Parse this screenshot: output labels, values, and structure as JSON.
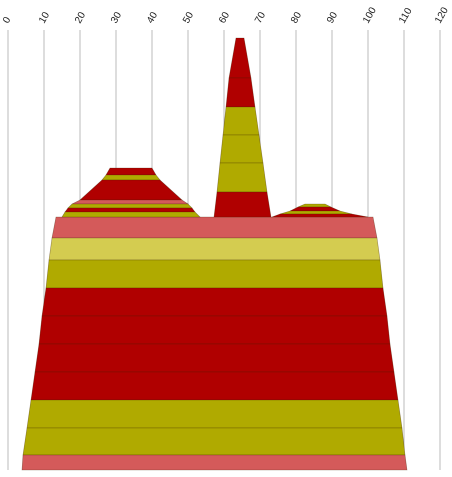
{
  "chart_data": {
    "type": "profile",
    "xlim": [
      0,
      120
    ],
    "xticks": [
      0,
      10,
      20,
      30,
      40,
      50,
      60,
      70,
      80,
      90,
      100,
      110,
      120
    ],
    "grid": true
  }
}
